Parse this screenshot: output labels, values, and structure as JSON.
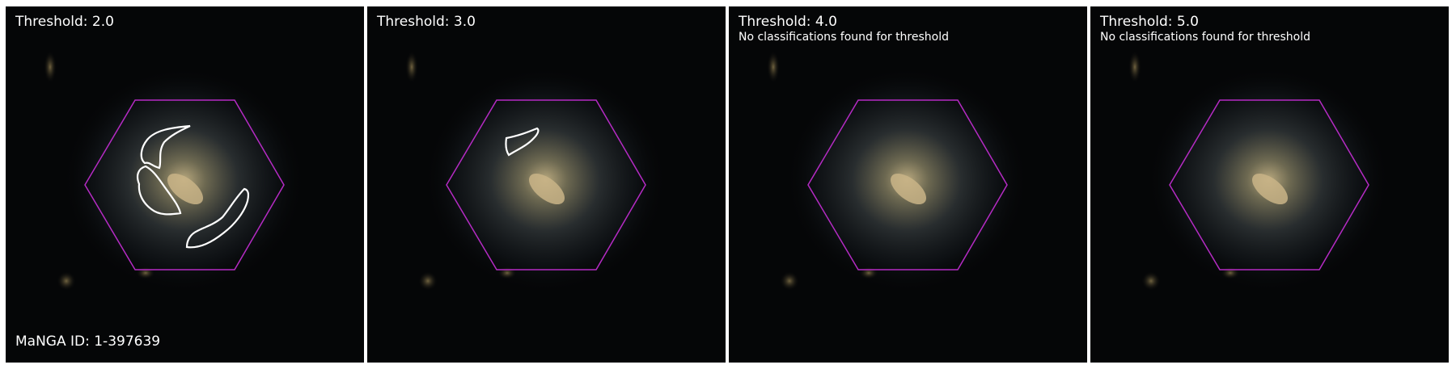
{
  "colors": {
    "background": "#050607",
    "hexagon": "#b52bc4",
    "contour": "#ffffff",
    "galaxy_core": "#bfae82"
  },
  "panels": [
    {
      "title": "Threshold: 2.0",
      "subtitle": "",
      "contours": 3
    },
    {
      "title": "Threshold: 3.0",
      "subtitle": "",
      "contours": 1
    },
    {
      "title": "Threshold: 4.0",
      "subtitle": "No classifications found for threshold",
      "contours": 0
    },
    {
      "title": "Threshold: 5.0",
      "subtitle": "No classifications found for threshold",
      "contours": 0
    }
  ],
  "manga_id": "MaNGA ID: 1-397639"
}
